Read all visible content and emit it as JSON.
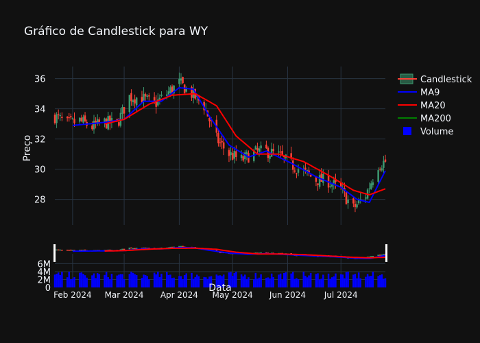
{
  "chart_data": {
    "type": "candlestick",
    "title": "Gráfico de Candlestick para WY",
    "ylabel": "Preço",
    "xlabel": "Data",
    "ylim": [
      26.3,
      36.8
    ],
    "volume_ylim": [
      0,
      8000000
    ],
    "x_ticks": [
      "Feb 2024",
      "Mar 2024",
      "Apr 2024",
      "May 2024",
      "Jun 2024",
      "Jul 2024"
    ],
    "x_tick_dates": [
      "2024-02-01",
      "2024-03-01",
      "2024-04-01",
      "2024-05-01",
      "2024-06-01",
      "2024-07-01"
    ],
    "y_ticks": [
      28,
      30,
      32,
      34,
      36
    ],
    "volume_ticks": [
      "0",
      "2M",
      "4M",
      "6M"
    ],
    "volume_tick_values": [
      0,
      2000000,
      4000000,
      6000000
    ],
    "x_range": [
      "2024-01-22",
      "2024-07-26"
    ],
    "grid": true,
    "legend_position": "top-right",
    "legend": [
      "Candlestick",
      "MA9",
      "MA20",
      "MA200",
      "Volume"
    ],
    "colors": {
      "background": "#111111",
      "grid": "#283442",
      "increasing": "#3D9970",
      "decreasing": "#FF4136",
      "ma9": "#0000ff",
      "ma20": "#ff0000",
      "ma200": "#008000",
      "volume": "#0000ff",
      "text": "#f2f5fa"
    },
    "close_anchors": [
      [
        "2024-01-22",
        33.5
      ],
      [
        "2024-01-29",
        33.0
      ],
      [
        "2024-02-05",
        33.2
      ],
      [
        "2024-02-12",
        32.8
      ],
      [
        "2024-02-19",
        33.1
      ],
      [
        "2024-02-26",
        33.0
      ],
      [
        "2024-03-04",
        34.8
      ],
      [
        "2024-03-11",
        34.7
      ],
      [
        "2024-03-18",
        34.3
      ],
      [
        "2024-03-25",
        35.0
      ],
      [
        "2024-04-01",
        35.7
      ],
      [
        "2024-04-08",
        35.0
      ],
      [
        "2024-04-15",
        34.2
      ],
      [
        "2024-04-22",
        32.0
      ],
      [
        "2024-04-29",
        31.0
      ],
      [
        "2024-05-06",
        30.6
      ],
      [
        "2024-05-13",
        31.1
      ],
      [
        "2024-05-20",
        31.2
      ],
      [
        "2024-05-27",
        30.9
      ],
      [
        "2024-06-03",
        30.3
      ],
      [
        "2024-06-10",
        29.8
      ],
      [
        "2024-06-17",
        29.3
      ],
      [
        "2024-06-24",
        29.2
      ],
      [
        "2024-07-01",
        28.6
      ],
      [
        "2024-07-08",
        27.4
      ],
      [
        "2024-07-15",
        28.3
      ],
      [
        "2024-07-22",
        30.3
      ],
      [
        "2024-07-26",
        30.5
      ]
    ],
    "ma9_anchors": [
      [
        "2024-02-01",
        32.9
      ],
      [
        "2024-02-19",
        33.1
      ],
      [
        "2024-03-01",
        33.3
      ],
      [
        "2024-03-12",
        34.5
      ],
      [
        "2024-03-22",
        34.5
      ],
      [
        "2024-04-01",
        35.4
      ],
      [
        "2024-04-09",
        35.3
      ],
      [
        "2024-04-18",
        33.5
      ],
      [
        "2024-04-29",
        31.6
      ],
      [
        "2024-05-10",
        30.8
      ],
      [
        "2024-05-20",
        31.2
      ],
      [
        "2024-06-03",
        30.4
      ],
      [
        "2024-06-17",
        29.5
      ],
      [
        "2024-07-01",
        28.8
      ],
      [
        "2024-07-10",
        28.0
      ],
      [
        "2024-07-17",
        27.8
      ],
      [
        "2024-07-26",
        29.9
      ]
    ],
    "ma20_anchors": [
      [
        "2024-02-19",
        33.0
      ],
      [
        "2024-03-01",
        33.3
      ],
      [
        "2024-03-15",
        34.3
      ],
      [
        "2024-03-28",
        34.9
      ],
      [
        "2024-04-10",
        35.0
      ],
      [
        "2024-04-22",
        34.2
      ],
      [
        "2024-05-03",
        32.2
      ],
      [
        "2024-05-15",
        31.0
      ],
      [
        "2024-05-27",
        31.0
      ],
      [
        "2024-06-10",
        30.5
      ],
      [
        "2024-06-24",
        29.6
      ],
      [
        "2024-07-08",
        28.6
      ],
      [
        "2024-07-17",
        28.3
      ],
      [
        "2024-07-26",
        28.7
      ]
    ],
    "volume_range": [
      2000000,
      4000000
    ]
  }
}
